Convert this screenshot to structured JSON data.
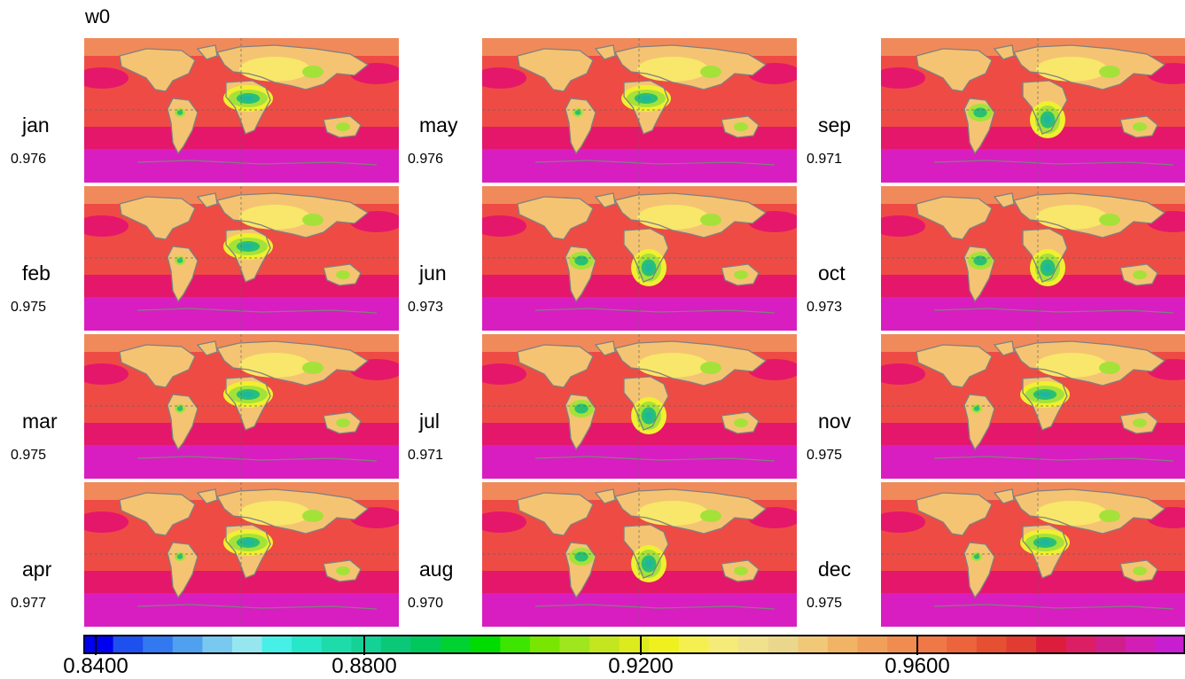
{
  "title": "w0",
  "colors": {
    "ocean_south": "#d81ec0",
    "ocean_mid": "#e5176a",
    "ocean_tropic": "#ee4b45",
    "land_high": "#f08a5a",
    "land_arid": "#f5c472",
    "land_bright": "#f8e76a",
    "land_yellow": "#f0f030",
    "land_green": "#a4e23a",
    "land_deep": "#2ac074",
    "land_core": "#1fb6a0",
    "coast": "#808080"
  },
  "panels": [
    {
      "month": "jan",
      "value": "0.976"
    },
    {
      "month": "feb",
      "value": "0.975"
    },
    {
      "month": "mar",
      "value": "0.975"
    },
    {
      "month": "apr",
      "value": "0.977"
    },
    {
      "month": "may",
      "value": "0.976"
    },
    {
      "month": "jun",
      "value": "0.973"
    },
    {
      "month": "jul",
      "value": "0.971"
    },
    {
      "month": "aug",
      "value": "0.970"
    },
    {
      "month": "sep",
      "value": "0.971"
    },
    {
      "month": "oct",
      "value": "0.973"
    },
    {
      "month": "nov",
      "value": "0.975"
    },
    {
      "month": "dec",
      "value": "0.975"
    }
  ],
  "colorbar": {
    "ticks": [
      "0.8400",
      "0.8800",
      "0.9200",
      "0.9600"
    ],
    "colors": [
      "#0000f0",
      "#1e50f0",
      "#3278f0",
      "#50a0f0",
      "#78c8f0",
      "#96e6f0",
      "#46f0e6",
      "#28e6c8",
      "#1edcaa",
      "#14d296",
      "#0ac878",
      "#00c85a",
      "#00d232",
      "#00dc00",
      "#3ce600",
      "#78e600",
      "#a0e61e",
      "#c3e61e",
      "#dceb1e",
      "#f0f01e",
      "#f5f050",
      "#f5eb78",
      "#f0e18c",
      "#ebd78c",
      "#f0c878",
      "#f0b464",
      "#f0a05a",
      "#f08c50",
      "#f07846",
      "#eb643c",
      "#e65032",
      "#e13c32",
      "#dc1e3c",
      "#dc1e64",
      "#d21e8c",
      "#d21eb4",
      "#c81ed2"
    ]
  }
}
